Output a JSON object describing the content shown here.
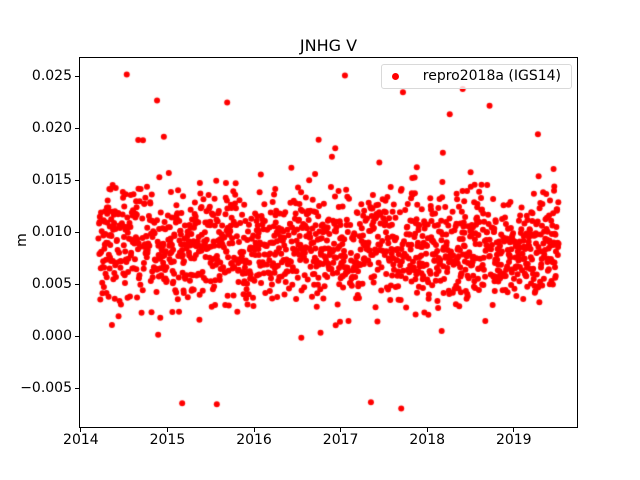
{
  "chart_data": {
    "type": "scatter",
    "title": "JNHG V",
    "xlabel": "",
    "ylabel": "m",
    "xlim": [
      2013.99,
      2019.73
    ],
    "ylim": [
      -0.00868,
      0.02678
    ],
    "grid": false,
    "xticks": {
      "values": [
        2014,
        2015,
        2016,
        2017,
        2018,
        2019
      ],
      "labels": [
        "2014",
        "2015",
        "2016",
        "2017",
        "2018",
        "2019"
      ]
    },
    "yticks": {
      "values": [
        -0.005,
        0.0,
        0.005,
        0.01,
        0.015,
        0.02,
        0.025
      ],
      "labels": [
        "−0.005",
        "0.000",
        "0.005",
        "0.010",
        "0.015",
        "0.020",
        "0.025"
      ]
    },
    "legend": {
      "position": "upper-right",
      "entries": [
        {
          "label": "repro2018a (IGS14)",
          "color": "#ff0000",
          "marker": "circle"
        }
      ]
    },
    "series": [
      {
        "name": "repro2018a (IGS14)",
        "color": "#ff0000",
        "marker": "circle",
        "marker_diameter_px": 6,
        "sampling": "daily",
        "x_start": 2014.2,
        "x_end": 2019.52,
        "approx_n_points": 1480,
        "y_mean": 0.0086,
        "y_std": 0.0028,
        "y_min": -0.0071,
        "y_max": 0.0252,
        "annual_amplitude": 0.0007,
        "annual_phase": 0.3,
        "dropout": 0.24,
        "outlier_high_prob": 0.01,
        "outlier_high_range": [
          0.003,
          0.012
        ],
        "outlier_low_prob": 0.007,
        "outlier_low_range": [
          0.003,
          0.011
        ],
        "seed": 1234,
        "extreme_points": [
          [
            2014.53,
            0.0252
          ],
          [
            2014.88,
            0.0227
          ],
          [
            2015.69,
            0.0225
          ],
          [
            2017.05,
            0.0251
          ],
          [
            2017.72,
            0.0235
          ],
          [
            2018.41,
            0.0238
          ],
          [
            2018.72,
            0.0222
          ],
          [
            2015.17,
            -0.0064
          ],
          [
            2015.57,
            -0.0065
          ],
          [
            2017.35,
            -0.0063
          ],
          [
            2017.7,
            -0.0069
          ]
        ]
      }
    ]
  },
  "colors": {
    "points": "#ff0000",
    "axis": "#000000",
    "text": "#000000",
    "legend_border": "#d9d9d9",
    "legend_background": "rgba(255,255,255,0.8)",
    "background": "#ffffff"
  }
}
